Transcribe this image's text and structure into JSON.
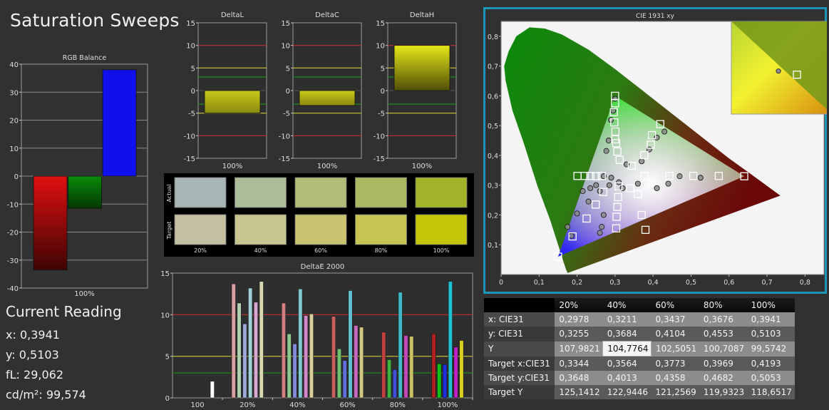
{
  "page_title": "Saturation Sweeps",
  "current_reading": {
    "heading": "Current Reading",
    "x": "x: 0,3941",
    "y": "y: 0,5103",
    "fl": "fL: 29,062",
    "cdm2": "cd/m²: 99,574"
  },
  "chart_data": [
    {
      "id": "rgb_balance",
      "type": "bar",
      "title": "RGB Balance",
      "categories": [
        "100%"
      ],
      "series": [
        {
          "name": "R",
          "color": "#e01010",
          "values": [
            -33.5
          ]
        },
        {
          "name": "G",
          "color": "#0a8a0a",
          "values": [
            -11.5
          ]
        },
        {
          "name": "B",
          "color": "#1010ee",
          "values": [
            38
          ]
        }
      ],
      "ylim": [
        -40,
        40
      ],
      "yticks": [
        -40,
        -30,
        -20,
        -10,
        0,
        10,
        20,
        30,
        40
      ],
      "grid": true
    },
    {
      "id": "delta_l",
      "type": "bar",
      "title": "DeltaL",
      "categories": [
        "100%"
      ],
      "values": [
        -5
      ],
      "ylim": [
        -15,
        15
      ],
      "yticks": [
        -15,
        -10,
        -5,
        0,
        5,
        10,
        15
      ],
      "reference_lines": [
        10,
        5,
        3,
        -3,
        -5,
        -10
      ]
    },
    {
      "id": "delta_c",
      "type": "bar",
      "title": "DeltaC",
      "categories": [
        "100%"
      ],
      "values": [
        -3.3
      ],
      "ylim": [
        -15,
        15
      ],
      "yticks": [
        -15,
        -10,
        -5,
        0,
        5,
        10,
        15
      ],
      "reference_lines": [
        10,
        5,
        3,
        -3,
        -5,
        -10
      ]
    },
    {
      "id": "delta_h",
      "type": "bar",
      "title": "DeltaH",
      "categories": [
        "100%"
      ],
      "values": [
        10
      ],
      "ylim": [
        -15,
        15
      ],
      "yticks": [
        -15,
        -10,
        -5,
        0,
        5,
        10,
        15
      ],
      "reference_lines": [
        10,
        5,
        3,
        -3,
        -5,
        -10
      ]
    },
    {
      "id": "delta_e_2000",
      "type": "bar",
      "title": "DeltaE 2000",
      "categories": [
        "100",
        "20%",
        "40%",
        "60%",
        "80%",
        "100%"
      ],
      "groups": [
        [
          {
            "v": 2,
            "c": "#ffffff"
          }
        ],
        [
          {
            "v": 13.7,
            "c": "#d8a0a0"
          },
          {
            "v": 11.4,
            "c": "#b0d0b0"
          },
          {
            "v": 8.9,
            "c": "#a0a8d8"
          },
          {
            "v": 13.2,
            "c": "#a0d0d8"
          },
          {
            "v": 11.5,
            "c": "#d8a8d0"
          },
          {
            "v": 14,
            "c": "#d8d8b0"
          }
        ],
        [
          {
            "v": 11.4,
            "c": "#d08080"
          },
          {
            "v": 7.7,
            "c": "#90c890"
          },
          {
            "v": 6.5,
            "c": "#8088d8"
          },
          {
            "v": 13.1,
            "c": "#80c8d0"
          },
          {
            "v": 9.9,
            "c": "#d088c8"
          },
          {
            "v": 10.1,
            "c": "#d8d098"
          }
        ],
        [
          {
            "v": 9.8,
            "c": "#c86060"
          },
          {
            "v": 5.9,
            "c": "#70c070"
          },
          {
            "v": 4.5,
            "c": "#6070d8"
          },
          {
            "v": 12.9,
            "c": "#60c0d0"
          },
          {
            "v": 8.7,
            "c": "#c868c0"
          },
          {
            "v": 8.5,
            "c": "#d0c880"
          }
        ],
        [
          {
            "v": 7.9,
            "c": "#c04040"
          },
          {
            "v": 4.6,
            "c": "#40b040"
          },
          {
            "v": 3.4,
            "c": "#4050d8"
          },
          {
            "v": 12.7,
            "c": "#40b8c8"
          },
          {
            "v": 7.5,
            "c": "#c048b8"
          },
          {
            "v": 7.4,
            "c": "#c8c060"
          }
        ],
        [
          {
            "v": 7.7,
            "c": "#b02020"
          },
          {
            "v": 4.1,
            "c": "#10c010"
          },
          {
            "v": 4,
            "c": "#2030e0"
          },
          {
            "v": 14,
            "c": "#20c0d0"
          },
          {
            "v": 6.1,
            "c": "#c020c8"
          },
          {
            "v": 6.9,
            "c": "#d8d020"
          }
        ]
      ],
      "ylim": [
        0,
        15
      ],
      "yticks": [
        0,
        5,
        10,
        15
      ],
      "reference_lines": [
        10,
        5,
        3
      ]
    },
    {
      "id": "cie_1931_xy",
      "type": "scatter",
      "title": "CIE 1931 xy",
      "xlim": [
        0,
        0.85
      ],
      "ylim": [
        0,
        0.85
      ],
      "xticks": [
        "0",
        "0,1",
        "0,2",
        "0,3",
        "0,4",
        "0,5",
        "0,6",
        "0,7",
        "0,8"
      ],
      "yticks": [
        "0,1",
        "0,2",
        "0,3",
        "0,4",
        "0,5",
        "0,6",
        "0,7",
        "0,8"
      ],
      "gamut_triangle": [
        [
          0.64,
          0.33
        ],
        [
          0.3,
          0.6
        ],
        [
          0.15,
          0.06
        ]
      ],
      "white_point": [
        0.3127,
        0.329
      ],
      "targets": [
        [
          0.201,
          0.331
        ],
        [
          0.22,
          0.331
        ],
        [
          0.235,
          0.331
        ],
        [
          0.25,
          0.33
        ],
        [
          0.265,
          0.331
        ],
        [
          0.378,
          0.331
        ],
        [
          0.443,
          0.331
        ],
        [
          0.506,
          0.331
        ],
        [
          0.573,
          0.331
        ],
        [
          0.64,
          0.33
        ],
        [
          0.312,
          0.385
        ],
        [
          0.306,
          0.413
        ],
        [
          0.303,
          0.441
        ],
        [
          0.301,
          0.48
        ],
        [
          0.3,
          0.6
        ],
        [
          0.344,
          0.365
        ],
        [
          0.377,
          0.401
        ],
        [
          0.394,
          0.436
        ],
        [
          0.397,
          0.468
        ],
        [
          0.419,
          0.505
        ],
        [
          0.309,
          0.296
        ],
        [
          0.308,
          0.26
        ],
        [
          0.306,
          0.227
        ],
        [
          0.304,
          0.194
        ],
        [
          0.303,
          0.155
        ],
        [
          0.269,
          0.277
        ],
        [
          0.249,
          0.235
        ],
        [
          0.225,
          0.188
        ],
        [
          0.188,
          0.128
        ],
        [
          0.15,
          0.06
        ],
        [
          0.34,
          0.29
        ],
        [
          0.36,
          0.27
        ],
        [
          0.37,
          0.2
        ],
        [
          0.38,
          0.15
        ],
        [
          0.297,
          0.545
        ],
        [
          0.298,
          0.511
        ],
        [
          0.3,
          0.454
        ],
        [
          0.3,
          0.575
        ]
      ],
      "measured": [
        [
          0.3,
          0.59
        ],
        [
          0.295,
          0.55
        ],
        [
          0.289,
          0.519
        ],
        [
          0.283,
          0.45
        ],
        [
          0.277,
          0.415
        ],
        [
          0.43,
          0.48
        ],
        [
          0.41,
          0.46
        ],
        [
          0.39,
          0.42
        ],
        [
          0.37,
          0.38
        ],
        [
          0.33,
          0.37
        ],
        [
          0.525,
          0.325
        ],
        [
          0.47,
          0.33
        ],
        [
          0.44,
          0.305
        ],
        [
          0.41,
          0.29
        ],
        [
          0.36,
          0.305
        ],
        [
          0.175,
          0.16
        ],
        [
          0.2,
          0.205
        ],
        [
          0.23,
          0.245
        ],
        [
          0.26,
          0.28
        ],
        [
          0.285,
          0.3
        ],
        [
          0.215,
          0.28
        ],
        [
          0.235,
          0.29
        ],
        [
          0.25,
          0.3
        ],
        [
          0.27,
          0.33
        ],
        [
          0.29,
          0.325
        ],
        [
          0.32,
          0.29
        ],
        [
          0.27,
          0.2
        ],
        [
          0.265,
          0.16
        ],
        [
          0.26,
          0.14
        ],
        [
          0.185,
          0.13
        ],
        [
          0.31,
          0.31
        ]
      ],
      "inset_target": [
        0.4193,
        0.5053
      ],
      "inset_measured": [
        0.3941,
        0.5103
      ]
    }
  ],
  "data_table": {
    "header": [
      "",
      "20%",
      "40%",
      "60%",
      "80%",
      "100%"
    ],
    "rows": [
      [
        "x: CIE31",
        "0,2978",
        "0,3211",
        "0,3437",
        "0,3676",
        "0,3941"
      ],
      [
        "y: CIE31",
        "0,3255",
        "0,3684",
        "0,4104",
        "0,4553",
        "0,5103"
      ],
      [
        "Y",
        "107,9821",
        "104,7764",
        "102,5051",
        "100,7087",
        "99,5742"
      ],
      [
        "Target x:CIE31",
        "0,3344",
        "0,3564",
        "0,3773",
        "0,3969",
        "0,4193"
      ],
      [
        "Target y:CIE31",
        "0,3648",
        "0,4013",
        "0,4358",
        "0,4682",
        "0,5053"
      ],
      [
        "Target Y",
        "125,1412",
        "122,9446",
        "121,2569",
        "119,9323",
        "118,6517"
      ]
    ],
    "highlighted_cell": [
      2,
      2
    ]
  },
  "swatches": {
    "row_labels": [
      "Actual",
      "Target"
    ],
    "columns": [
      "20%",
      "40%",
      "60%",
      "80%",
      "100%"
    ],
    "actual": [
      "#a8b6b8",
      "#acbc9a",
      "#b2bc78",
      "#aab862",
      "#a4b42a"
    ],
    "target": [
      "#c2c0a0",
      "#c8c690",
      "#c8c470",
      "#c6c452",
      "#c4c408"
    ]
  }
}
